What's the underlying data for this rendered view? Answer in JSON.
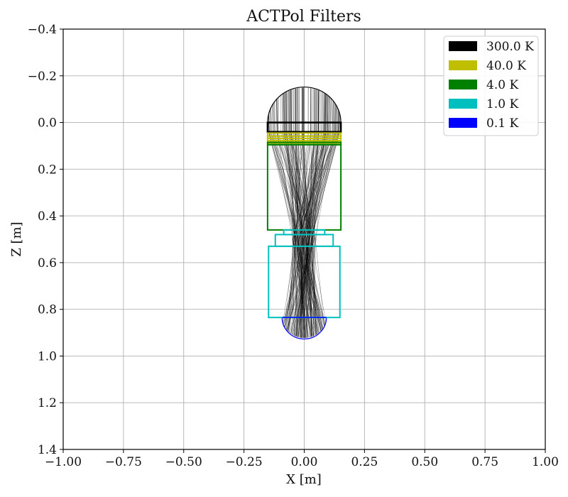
{
  "chart_data": {
    "type": "line",
    "title": "ACTPol Filters",
    "xlabel": "X [m]",
    "ylabel": "Z [m]",
    "xlim": [
      -1.0,
      1.0
    ],
    "ylim": [
      1.4,
      -0.4
    ],
    "y_inverted": true,
    "grid": true,
    "legend_placement": "top-right",
    "x_ticks": [
      "−1.00",
      "−0.75",
      "−0.50",
      "−0.25",
      "0.00",
      "0.25",
      "0.50",
      "0.75",
      "1.00"
    ],
    "x_tick_values": [
      -1.0,
      -0.75,
      -0.5,
      -0.25,
      0.0,
      0.25,
      0.5,
      0.75,
      1.0
    ],
    "y_ticks": [
      "−0.4",
      "−0.2",
      "0.0",
      "0.2",
      "0.4",
      "0.6",
      "0.8",
      "1.0",
      "1.2",
      "1.4"
    ],
    "y_tick_values": [
      -0.4,
      -0.2,
      0.0,
      0.2,
      0.4,
      0.6,
      0.8,
      1.0,
      1.2,
      1.4
    ],
    "legend": [
      {
        "label": "300.0 K",
        "color": "#000000"
      },
      {
        "label": "40.0 K",
        "color": "#bfbf00"
      },
      {
        "label": "4.0 K",
        "color": "#008000"
      },
      {
        "label": "1.0 K",
        "color": "#00bfbf"
      },
      {
        "label": "0.1 K",
        "color": "#0000ff"
      }
    ],
    "window": {
      "x_center": 0.0,
      "z_base": 0.0,
      "radius": 0.152,
      "color": "#000000"
    },
    "detector_lens": {
      "x_center": 0.0,
      "z_base": 0.835,
      "radius": 0.092,
      "color": "#0000ff"
    },
    "filters": [
      {
        "name": "300.0 K",
        "color": "#000000",
        "rects": [
          [
            -0.152,
            0.0,
            0.152,
            0.04
          ]
        ]
      },
      {
        "name": "40.0 K",
        "color": "#bfbf00",
        "rects": [
          [
            -0.152,
            0.045,
            0.152,
            0.058
          ],
          [
            -0.152,
            0.058,
            0.152,
            0.068
          ],
          [
            -0.152,
            0.068,
            0.152,
            0.078
          ],
          [
            -0.152,
            0.078,
            0.152,
            0.088
          ]
        ]
      },
      {
        "name": "4.0 K",
        "color": "#008000",
        "rects": [
          [
            -0.152,
            0.085,
            0.152,
            0.095
          ],
          [
            -0.152,
            0.095,
            0.152,
            0.46
          ]
        ]
      },
      {
        "name": "1.0 K",
        "color": "#00bfbf",
        "rects": [
          [
            -0.085,
            0.46,
            0.085,
            0.48
          ],
          [
            -0.12,
            0.48,
            0.12,
            0.53
          ],
          [
            -0.148,
            0.53,
            0.148,
            0.835
          ]
        ]
      },
      {
        "name": "0.1 K",
        "color": "#0000ff",
        "rects": [
          [
            -0.092,
            0.835,
            0.092,
            0.835
          ]
        ]
      }
    ],
    "rays": {
      "color": "#000000",
      "z_start": 0.0,
      "z_end": 0.835,
      "top_half_width": 0.15,
      "bottom_half_width": 0.09,
      "waist_half_width": 0.05,
      "waist_z": 0.5
    }
  }
}
